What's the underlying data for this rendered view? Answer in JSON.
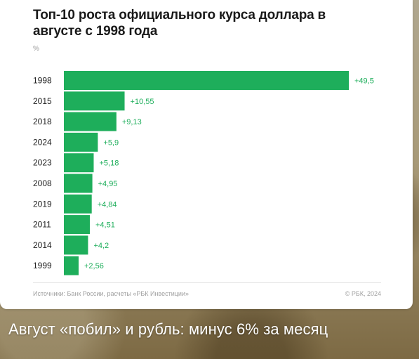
{
  "colors": {
    "bar": "#1eae5b",
    "value_label": "#1eae5b",
    "category_label": "#222222"
  },
  "chart_data": {
    "type": "bar",
    "orientation": "horizontal",
    "title": "Топ-10 роста официального курса доллара в августе с 1998 года",
    "unit": "%",
    "categories": [
      "1998",
      "2015",
      "2018",
      "2024",
      "2023",
      "2008",
      "2019",
      "2011",
      "2014",
      "1999"
    ],
    "values": [
      49.5,
      10.55,
      9.13,
      5.9,
      5.18,
      4.95,
      4.84,
      4.51,
      4.2,
      2.56
    ],
    "value_labels": [
      "+49,5",
      "+10,55",
      "+9,13",
      "+5,9",
      "+5,18",
      "+4,95",
      "+4,84",
      "+4,51",
      "+4,2",
      "+2,56"
    ],
    "xlim": [
      0,
      49.5
    ],
    "grid": false
  },
  "footer": {
    "source": "Источники: Банк России, расчеты «РБК Инвестиции»",
    "copyright": "© РБК, 2024"
  },
  "caption": "Август «побил» и рубль: минус 6% за месяц"
}
